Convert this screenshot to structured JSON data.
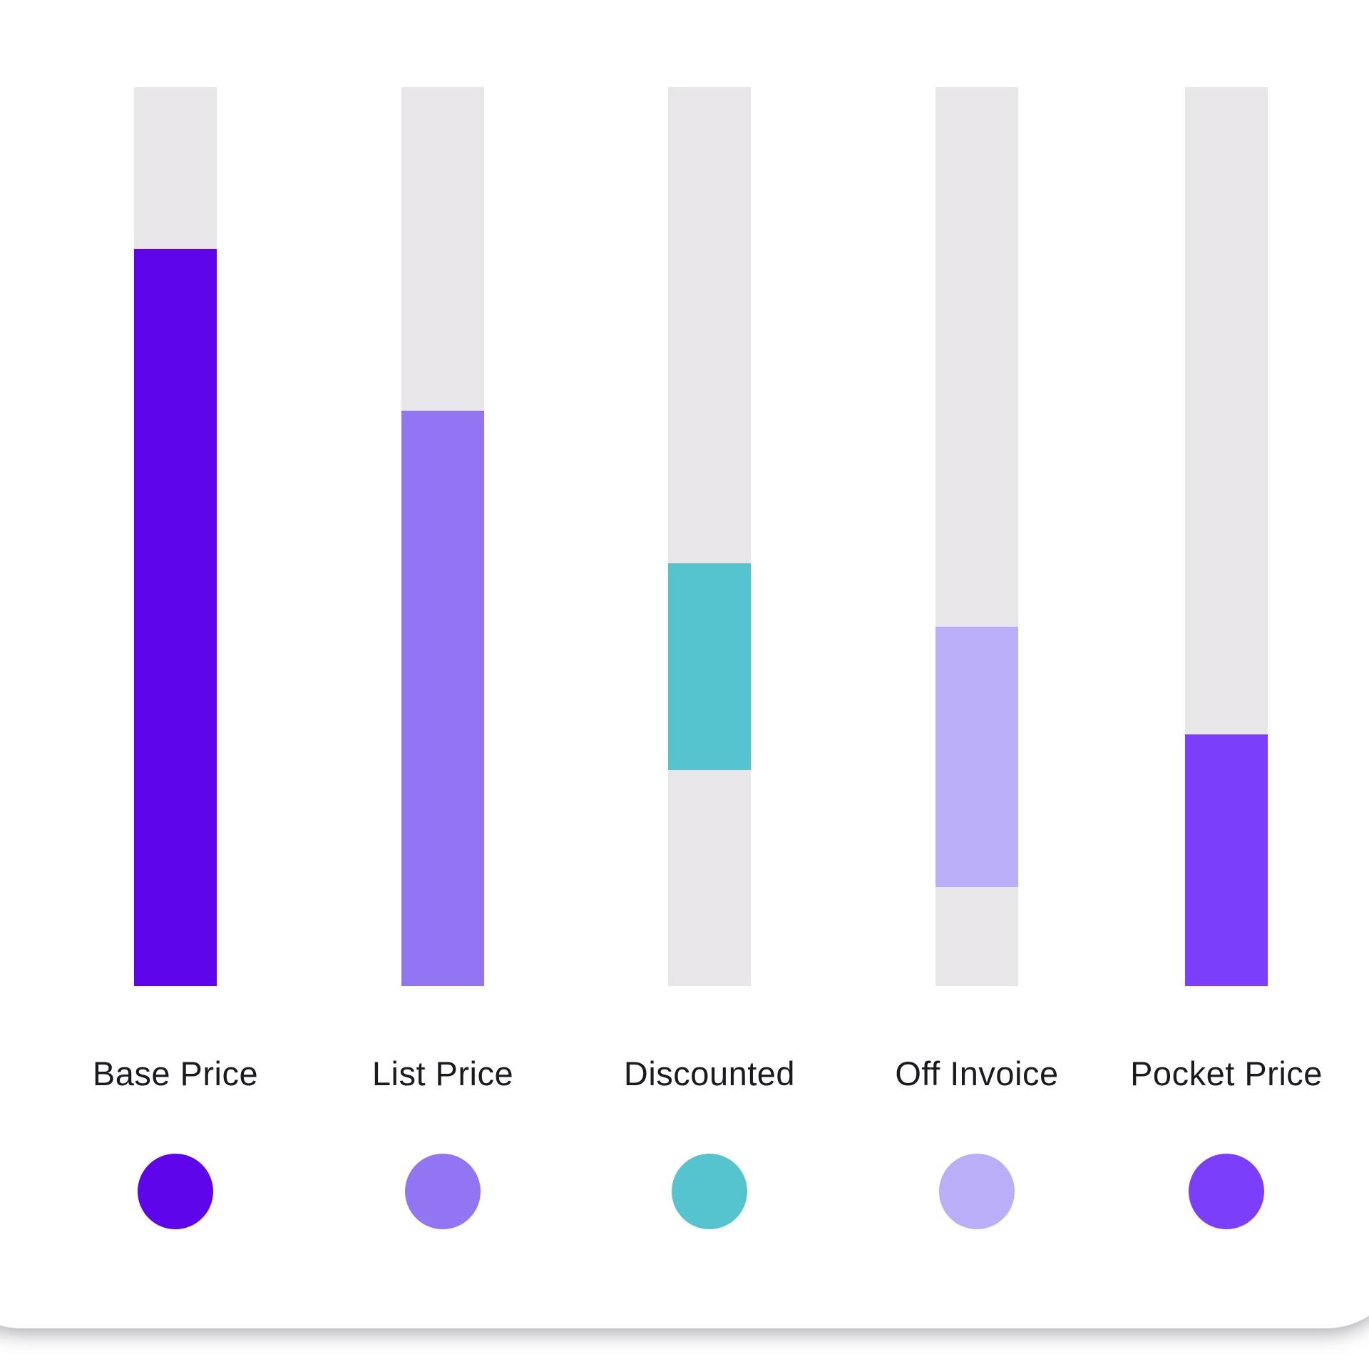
{
  "chart_data": {
    "type": "bar",
    "subtype": "floating-range-waterfall",
    "title": "",
    "xlabel": "",
    "ylabel": "",
    "ylim": [
      0,
      1
    ],
    "grid": false,
    "axes_hidden": true,
    "legend_position": "below-category-dots",
    "track_color": "#e8e6e9",
    "categories": [
      "Base Price",
      "List Price",
      "Discounted",
      "Off Invoice",
      "Pocket Price"
    ],
    "series": [
      {
        "name": "Base Price",
        "from": 0.0,
        "to": 0.82,
        "color": "#5e05eb"
      },
      {
        "name": "List Price",
        "from": 0.0,
        "to": 0.64,
        "color": "#9175f2"
      },
      {
        "name": "Discounted",
        "from": 0.24,
        "to": 0.47,
        "color": "#56c4ce"
      },
      {
        "name": "Off Invoice",
        "from": 0.11,
        "to": 0.4,
        "color": "#bbaef8"
      },
      {
        "name": "Pocket Price",
        "from": 0.0,
        "to": 0.28,
        "color": "#7b3ffc"
      }
    ]
  },
  "label_color": "#1b1b1f",
  "card_background": "#ffffff"
}
